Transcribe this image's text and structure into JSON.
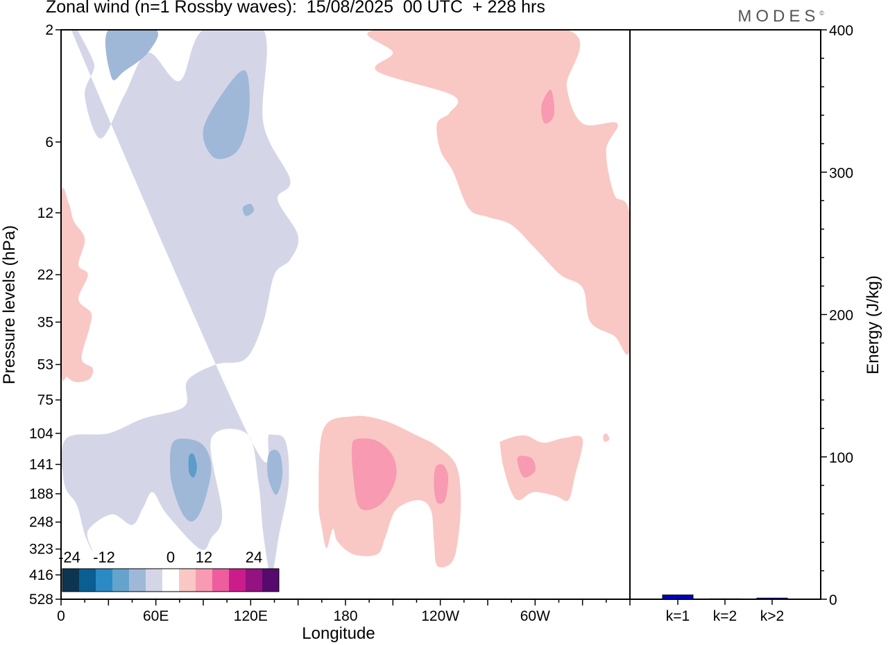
{
  "title": "Zonal wind (n=1 Rossby waves):  15/08/2025  00 UTC  + 228 hrs",
  "brand": "MODES",
  "brand_mark": "©",
  "colors": {
    "neg_light": "#d4d6e8",
    "neg_mid": "#a0b8d8",
    "neg_dark": "#5c9cc8",
    "pos_light": "#f9c8c4",
    "pos_mid": "#f89ab2",
    "bar": "#0000cc"
  },
  "chart_data": [
    {
      "type": "heatmap",
      "title": "Zonal wind (n=1 Rossby waves):  15/08/2025  00 UTC  + 228 hrs",
      "xlabel": "Longitude",
      "ylabel": "Pressure levels (hPa)",
      "x_ticks": [
        "0",
        "60E",
        "120E",
        "180",
        "120W",
        "60W"
      ],
      "x_tick_values": [
        0,
        60,
        120,
        180,
        240,
        300
      ],
      "xlim": [
        0,
        360
      ],
      "y_levels": [
        "2",
        "6",
        "12",
        "22",
        "35",
        "53",
        "75",
        "104",
        "141",
        "188",
        "248",
        "323",
        "416",
        "528"
      ],
      "colorbar": {
        "tick_labels": [
          "-24",
          "-12",
          "0",
          "12",
          "24"
        ],
        "colors": [
          "#0d3552",
          "#0b5e92",
          "#2a8ac4",
          "#64a4cc",
          "#a0b8d8",
          "#d4d6e8",
          "#ffffff",
          "#f9c8c4",
          "#f89ab2",
          "#ee5d9e",
          "#cc1c8c",
          "#941281",
          "#560a6e"
        ]
      },
      "contours": [
        {
          "level": "negative",
          "shade": "light",
          "points": [
            [
              9,
              2.2
            ],
            [
              21,
              2.8
            ],
            [
              15,
              3.8
            ],
            [
              25,
              5.8
            ],
            [
              40,
              3.8
            ],
            [
              55,
              2.5
            ],
            [
              75,
              3.3
            ],
            [
              90,
              2
            ],
            [
              128,
              2
            ],
            [
              128,
              5
            ],
            [
              145,
              8.7
            ],
            [
              137,
              10.5
            ],
            [
              150,
              15
            ],
            [
              145,
              19
            ],
            [
              135,
              22
            ],
            [
              128,
              35
            ],
            [
              117,
              50
            ],
            [
              98,
              53
            ],
            [
              80,
              62
            ],
            [
              78,
              80
            ],
            [
              52,
              90
            ],
            [
              30,
              104
            ],
            [
              3,
              110
            ],
            [
              2,
              170
            ],
            [
              10,
              210
            ],
            [
              15,
              280
            ],
            [
              20,
              330
            ],
            [
              17,
              270
            ],
            [
              32,
              230
            ],
            [
              45,
              255
            ],
            [
              52,
              215
            ],
            [
              58,
              185
            ],
            [
              67,
              230
            ],
            [
              88,
              323
            ],
            [
              95,
              290
            ],
            [
              102,
              230
            ],
            [
              95,
              110
            ],
            [
              118,
              105
            ],
            [
              125,
              170
            ],
            [
              128,
              280
            ],
            [
              133,
              416
            ],
            [
              138,
              280
            ],
            [
              144,
              170
            ],
            [
              142,
              112
            ],
            [
              132,
              105
            ],
            [
              118,
              104
            ]
          ]
        },
        {
          "level": "negative",
          "shade": "mid",
          "points": [
            [
              30,
              2
            ],
            [
              60,
              2
            ],
            [
              55,
              2.5
            ],
            [
              40,
              3
            ],
            [
              32,
              3.2
            ]
          ]
        },
        {
          "level": "negative",
          "shade": "mid",
          "points": [
            [
              90,
              5.3
            ],
            [
              105,
              3.5
            ],
            [
              117,
              3
            ],
            [
              119,
              4.5
            ],
            [
              112,
              6.5
            ],
            [
              97,
              7
            ]
          ]
        },
        {
          "level": "negative",
          "shade": "mid",
          "points": [
            [
              71,
              113
            ],
            [
              84,
              111
            ],
            [
              92,
              122
            ],
            [
              95,
              150
            ],
            [
              90,
              210
            ],
            [
              84,
              245
            ],
            [
              78,
              235
            ],
            [
              72,
              190
            ],
            [
              69,
              150
            ]
          ]
        },
        {
          "level": "negative",
          "shade": "mid",
          "points": [
            [
              131,
              130
            ],
            [
              135,
              122
            ],
            [
              139,
              130
            ],
            [
              140,
              160
            ],
            [
              136,
              190
            ],
            [
              131,
              160
            ]
          ]
        },
        {
          "level": "negative",
          "shade": "mid",
          "points": [
            [
              115,
              11.4
            ],
            [
              120,
              11
            ],
            [
              122,
              11.8
            ],
            [
              117,
              12.4
            ]
          ]
        },
        {
          "level": "negative",
          "shade": "dark",
          "points": [
            [
              81,
              130
            ],
            [
              84,
              128
            ],
            [
              86,
              145
            ],
            [
              84,
              160
            ],
            [
              81,
              152
            ]
          ]
        },
        {
          "level": "positive",
          "shade": "light",
          "points": [
            [
              0,
              10.5
            ],
            [
              5,
              11
            ],
            [
              8,
              13
            ],
            [
              15,
              15.5
            ],
            [
              11,
              20
            ],
            [
              17,
              22
            ],
            [
              11,
              28
            ],
            [
              19,
              32
            ],
            [
              18,
              37
            ],
            [
              13,
              50
            ],
            [
              20,
              55
            ],
            [
              18,
              61
            ],
            [
              10,
              63
            ],
            [
              4,
              60
            ],
            [
              0,
              53
            ]
          ]
        },
        {
          "level": "positive",
          "shade": "light",
          "points": [
            [
              200,
              2
            ],
            [
              320,
              2
            ],
            [
              320,
              3.5
            ],
            [
              330,
              5
            ],
            [
              352,
              5
            ],
            [
              345,
              6.5
            ],
            [
              350,
              10
            ],
            [
              360,
              12.5
            ],
            [
              360,
              45
            ],
            [
              350,
              40
            ],
            [
              335,
              35
            ],
            [
              330,
              25
            ],
            [
              316,
              22
            ],
            [
              300,
              17
            ],
            [
              285,
              13.5
            ],
            [
              270,
              12.5
            ],
            [
              258,
              11.5
            ],
            [
              248,
              8
            ],
            [
              240,
              6.5
            ],
            [
              238,
              5
            ],
            [
              246,
              4.5
            ],
            [
              248,
              3.8
            ],
            [
              200,
              3
            ],
            [
              210,
              2.5
            ]
          ]
        },
        {
          "level": "positive",
          "shade": "mid",
          "points": [
            [
              304,
              4.2
            ],
            [
              310,
              3.6
            ],
            [
              312,
              4.6
            ],
            [
              306,
              5
            ]
          ]
        },
        {
          "level": "positive",
          "shade": "light",
          "points": [
            [
              166,
              100
            ],
            [
              185,
              88
            ],
            [
              205,
              92
            ],
            [
              225,
              106
            ],
            [
              238,
              118
            ],
            [
              250,
              142
            ],
            [
              253,
              200
            ],
            [
              251,
              300
            ],
            [
              247,
              370
            ],
            [
              238,
              380
            ],
            [
              236,
              300
            ],
            [
              234,
              220
            ],
            [
              226,
              200
            ],
            [
              212,
              220
            ],
            [
              205,
              290
            ],
            [
              200,
              340
            ],
            [
              185,
              340
            ],
            [
              175,
              300
            ],
            [
              172,
              265
            ],
            [
              168,
              320
            ],
            [
              165,
              260
            ],
            [
              163,
              200
            ]
          ]
        },
        {
          "level": "positive",
          "shade": "mid",
          "points": [
            [
              187,
              110
            ],
            [
              200,
              112
            ],
            [
              210,
              130
            ],
            [
              212,
              160
            ],
            [
              205,
              200
            ],
            [
              195,
              220
            ],
            [
              188,
              210
            ],
            [
              185,
              160
            ],
            [
              184,
              120
            ]
          ]
        },
        {
          "level": "positive",
          "shade": "mid",
          "points": [
            [
              237,
              145
            ],
            [
              242,
              142
            ],
            [
              245,
              160
            ],
            [
              243,
              200
            ],
            [
              238,
              205
            ],
            [
              236,
              175
            ]
          ]
        },
        {
          "level": "positive",
          "shade": "light",
          "points": [
            [
              279,
              112
            ],
            [
              293,
              106
            ],
            [
              305,
              114
            ],
            [
              318,
              109
            ],
            [
              330,
              110
            ],
            [
              325,
              160
            ],
            [
              321,
              200
            ],
            [
              313,
              192
            ],
            [
              299,
              185
            ],
            [
              290,
              200
            ],
            [
              285,
              185
            ],
            [
              280,
              145
            ],
            [
              278,
              118
            ]
          ]
        },
        {
          "level": "positive",
          "shade": "mid",
          "points": [
            [
              290,
              130
            ],
            [
              298,
              133
            ],
            [
              300,
              150
            ],
            [
              293,
              160
            ],
            [
              289,
              140
            ]
          ]
        },
        {
          "level": "positive",
          "shade": "light",
          "points": [
            [
              343,
              107
            ],
            [
              345,
              104
            ],
            [
              347,
              110
            ],
            [
              344,
              113
            ]
          ]
        }
      ]
    },
    {
      "type": "bar",
      "categories": [
        "k=1",
        "k=2",
        "k>2"
      ],
      "values": [
        3,
        0.3,
        0.8
      ],
      "ylabel": "Energy (J/kg)",
      "ylim": [
        0,
        400
      ],
      "y_ticks": [
        "0",
        "100",
        "200",
        "300",
        "400"
      ],
      "y_tick_values": [
        0,
        100,
        200,
        300,
        400
      ]
    }
  ]
}
